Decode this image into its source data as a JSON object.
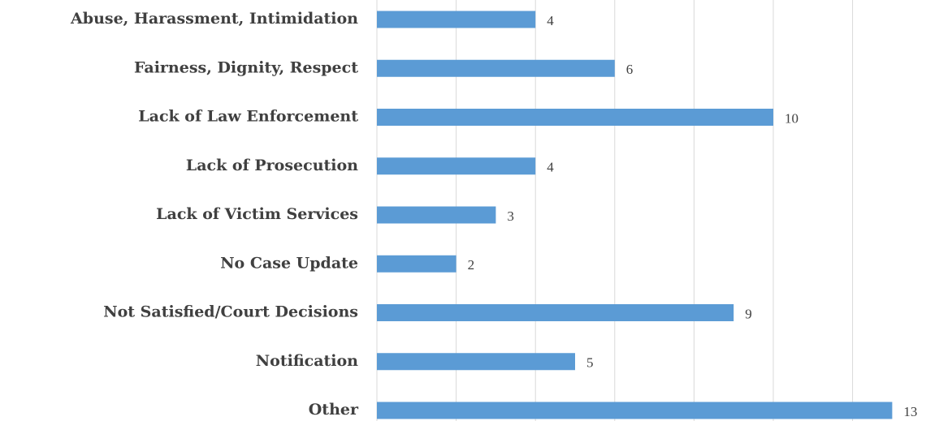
{
  "chart_data": {
    "type": "bar",
    "orientation": "horizontal",
    "categories": [
      "Abuse, Harassment, Intimidation",
      "Fairness, Dignity, Respect",
      "Lack of Law Enforcement",
      "Lack of Prosecution",
      "Lack of Victim Services",
      "No Case Update",
      "Not Satisfied/Court Decisions",
      "Notification",
      "Other"
    ],
    "values": [
      4,
      6,
      10,
      4,
      3,
      2,
      9,
      5,
      13
    ],
    "color": "#5b9bd5",
    "xlim": [
      0,
      13.6
    ],
    "xticks": [
      0,
      2,
      4,
      6,
      8,
      10,
      12
    ],
    "grid": true
  }
}
